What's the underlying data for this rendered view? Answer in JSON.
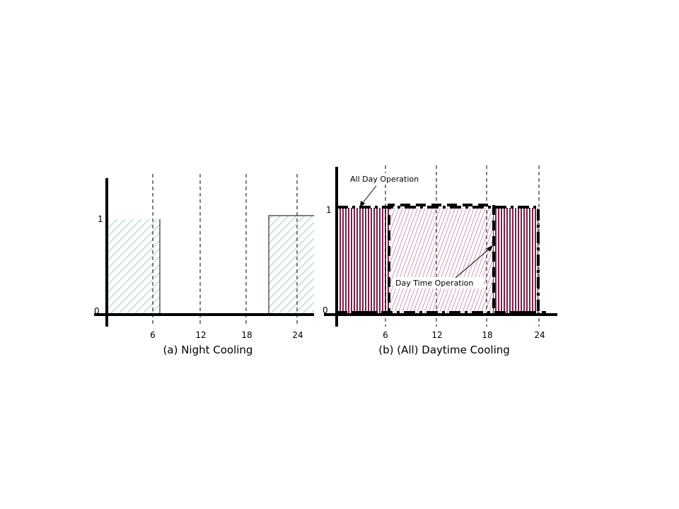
{
  "chart_data": [
    {
      "type": "area",
      "caption": "(a) Night Cooling",
      "xticks": [
        "6",
        "12",
        "18",
        "24"
      ],
      "yticks": [
        "0",
        "1"
      ],
      "xlim": [
        0,
        26
      ],
      "ylim": [
        0,
        1.1
      ],
      "series": [
        {
          "segments": [
            {
              "x0": 0,
              "x1": 6.7,
              "y": 1
            },
            {
              "x0": 20.5,
              "x1": 26,
              "y": 1
            }
          ],
          "color": "#7fbfbf",
          "pattern": "diagonal-hatch"
        }
      ]
    },
    {
      "type": "area",
      "caption": "(b) (All) Daytime Cooling",
      "xticks": [
        "6",
        "12",
        "18",
        "24"
      ],
      "yticks": [
        "0",
        "1"
      ],
      "xlim": [
        0,
        26
      ],
      "ylim": [
        0,
        1.1
      ],
      "annotations": [
        "All Day Operation",
        "Day Time Operation"
      ],
      "series": [
        {
          "segments": [
            {
              "x0": 0,
              "x1": 24,
              "y": 1
            }
          ],
          "color": "#7a1f4a",
          "pattern": "vertical-hatch"
        },
        {
          "segments": [
            {
              "x0": 6.5,
              "x1": 18.8,
              "y": 1
            }
          ],
          "color": "#d090b0",
          "pattern": "diagonal-hatch"
        }
      ]
    }
  ]
}
